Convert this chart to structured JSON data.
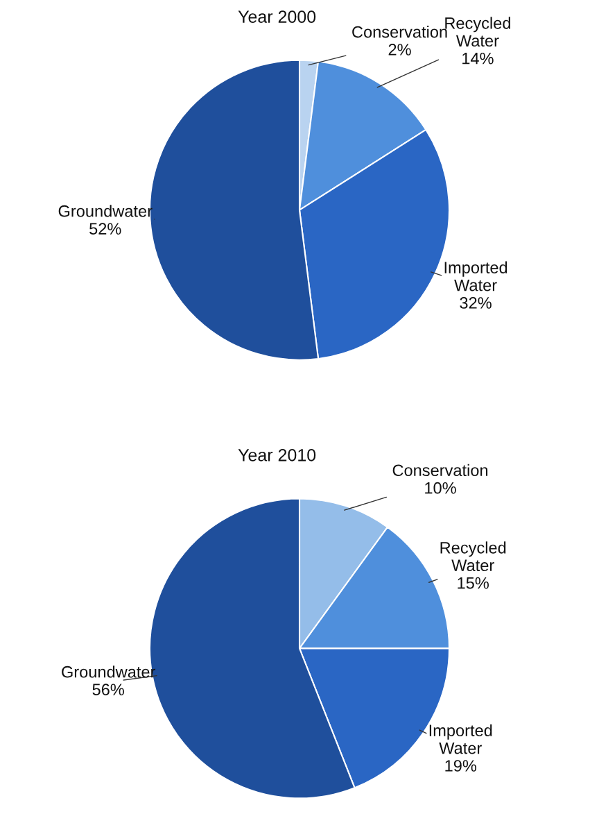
{
  "chart_data": [
    {
      "type": "pie",
      "title": "Year 2000",
      "categories": [
        "Conservation",
        "Recycled Water",
        "Imported Water",
        "Groundwater"
      ],
      "values": [
        2,
        14,
        32,
        52
      ],
      "value_labels": [
        "2%",
        "14%",
        "32%",
        "52%"
      ],
      "colors": [
        "#b9d3f0",
        "#4f8fdc",
        "#2a66c4",
        "#1f4f9c"
      ]
    },
    {
      "type": "pie",
      "title": "Year 2010",
      "categories": [
        "Conservation",
        "Recycled Water",
        "Imported Water",
        "Groundwater"
      ],
      "values": [
        10,
        15,
        19,
        56
      ],
      "value_labels": [
        "10%",
        "15%",
        "19%",
        "56%"
      ],
      "colors": [
        "#94bde9",
        "#4f8fdc",
        "#2a66c4",
        "#1f4f9c"
      ]
    }
  ]
}
